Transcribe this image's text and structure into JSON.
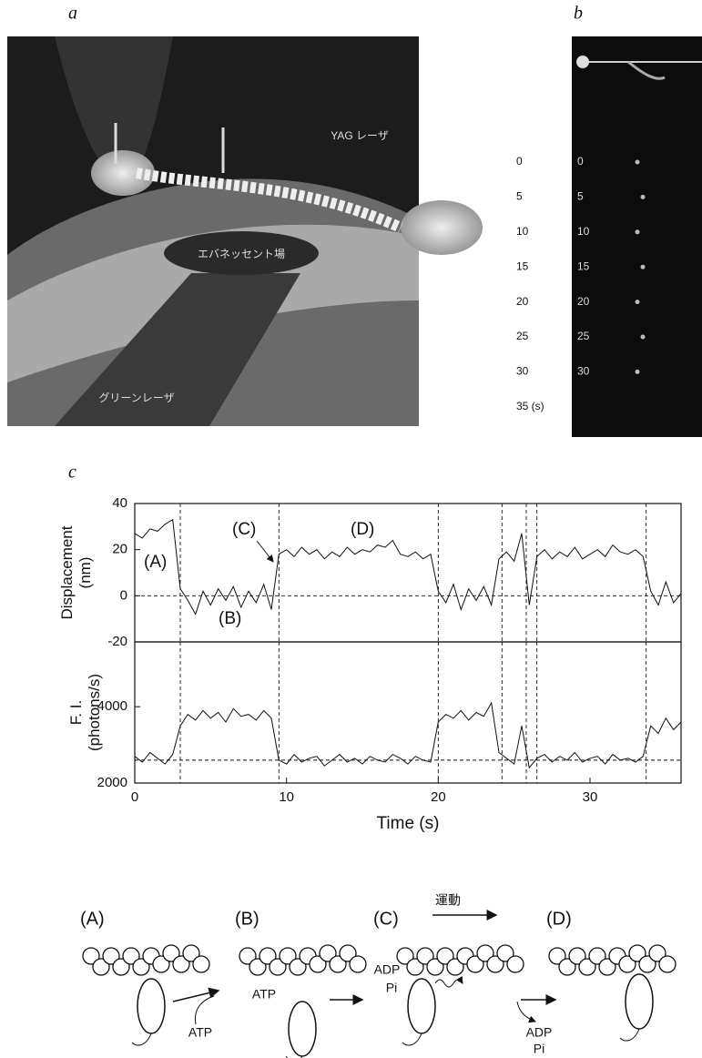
{
  "figure": {
    "panel_labels": [
      "a",
      "b",
      "c"
    ],
    "panel_a": {
      "labels": [
        "エバネッセント場",
        "YAG レーザ",
        "グリーンレーザ"
      ]
    },
    "panel_b": {
      "time_labels": [
        "0",
        "5",
        "10",
        "15",
        "20",
        "25",
        "30",
        "35 (s)"
      ],
      "frame_labels": [
        "0",
        "5",
        "10",
        "15",
        "20",
        "25",
        "30"
      ]
    },
    "scheme": {
      "states": [
        "(A)",
        "(B)",
        "(C)",
        "(D)"
      ],
      "atp_in": "ATP",
      "atp_bound": "ATP",
      "adp_bound": "ADP",
      "pi_bound": "Pi",
      "motion": "運動",
      "adp_out": "ADP",
      "pi_out": "Pi"
    }
  },
  "chart_data": [
    {
      "type": "line",
      "y_label": [
        "Displacement",
        "(nm)"
      ],
      "color": "#111111",
      "x": [
        0,
        0.5,
        1,
        1.5,
        2,
        2.5,
        3,
        3.5,
        4,
        4.5,
        5,
        5.5,
        6,
        6.5,
        7,
        7.5,
        8,
        8.5,
        9,
        9.5,
        10,
        10.5,
        11,
        11.5,
        12,
        12.5,
        13,
        13.5,
        14,
        14.5,
        15,
        15.5,
        16,
        16.5,
        17,
        17.5,
        18,
        18.5,
        19,
        19.5,
        20,
        20.5,
        21,
        21.5,
        22,
        22.5,
        23,
        23.5,
        24,
        24.5,
        25,
        25.5,
        26,
        26.5,
        27,
        27.5,
        28,
        28.5,
        29,
        29.5,
        30,
        30.5,
        31,
        31.5,
        32,
        32.5,
        33,
        33.5,
        34,
        34.5,
        35,
        35.5,
        36
      ],
      "values": [
        27,
        25,
        29,
        28,
        31,
        33,
        3,
        -2,
        -8,
        2,
        -4,
        3,
        -2,
        4,
        -5,
        2,
        -3,
        5,
        -6,
        18,
        20,
        17,
        21,
        18,
        20,
        16,
        19,
        17,
        21,
        18,
        20,
        19,
        22,
        21,
        24,
        18,
        17,
        19,
        16,
        18,
        2,
        -3,
        5,
        -6,
        3,
        -2,
        4,
        -4,
        16,
        19,
        15,
        27,
        -4,
        17,
        20,
        16,
        19,
        17,
        21,
        16,
        18,
        20,
        17,
        22,
        19,
        18,
        20,
        17,
        2,
        -4,
        6,
        -3,
        1
      ],
      "xlim": [
        0,
        36
      ],
      "ylim": [
        -20,
        40
      ],
      "yticks": [
        -20,
        0,
        20,
        40
      ],
      "vlines": [
        3,
        9.5,
        20,
        24.2,
        25.8,
        26.5,
        33.7
      ],
      "hline": 0,
      "annotations": [
        "(A)",
        "(B)",
        "(C)",
        "(D)"
      ]
    },
    {
      "type": "line",
      "y_label": [
        "F. I.",
        "(photons/s)"
      ],
      "x_label": "Time (s)",
      "color": "#111111",
      "x": [
        0,
        0.5,
        1,
        1.5,
        2,
        2.5,
        3,
        3.5,
        4,
        4.5,
        5,
        5.5,
        6,
        6.5,
        7,
        7.5,
        8,
        8.5,
        9,
        9.5,
        10,
        10.5,
        11,
        11.5,
        12,
        12.5,
        13,
        13.5,
        14,
        14.5,
        15,
        15.5,
        16,
        16.5,
        17,
        17.5,
        18,
        18.5,
        19,
        19.5,
        20,
        20.5,
        21,
        21.5,
        22,
        22.5,
        23,
        23.5,
        24,
        24.5,
        25,
        25.5,
        26,
        26.5,
        27,
        27.5,
        28,
        28.5,
        29,
        29.5,
        30,
        30.5,
        31,
        31.5,
        32,
        32.5,
        33,
        33.5,
        34,
        34.5,
        35,
        35.5,
        36
      ],
      "values": [
        2700,
        2550,
        2800,
        2650,
        2500,
        2750,
        3500,
        3800,
        3650,
        3900,
        3700,
        3850,
        3600,
        3950,
        3750,
        3800,
        3650,
        3900,
        3700,
        2600,
        2500,
        2750,
        2550,
        2650,
        2700,
        2450,
        2600,
        2750,
        2550,
        2650,
        2500,
        2700,
        2600,
        2550,
        2750,
        2650,
        2500,
        2700,
        2600,
        2550,
        3600,
        3800,
        3700,
        3900,
        3650,
        3850,
        3750,
        4100,
        2800,
        2650,
        2500,
        3500,
        2400,
        2650,
        2750,
        2550,
        2700,
        2600,
        2800,
        2550,
        2650,
        2700,
        2500,
        2750,
        2600,
        2650,
        2550,
        2700,
        3500,
        3300,
        3700,
        3400,
        3600
      ],
      "xlim": [
        0,
        36
      ],
      "xticks": [
        0,
        10,
        20,
        30
      ],
      "ylim": [
        2000,
        5700
      ],
      "yticks": [
        2000,
        4000
      ],
      "vlines": [
        3,
        9.5,
        20,
        24.2,
        25.8,
        26.5,
        33.7
      ],
      "hline": 2600
    }
  ]
}
